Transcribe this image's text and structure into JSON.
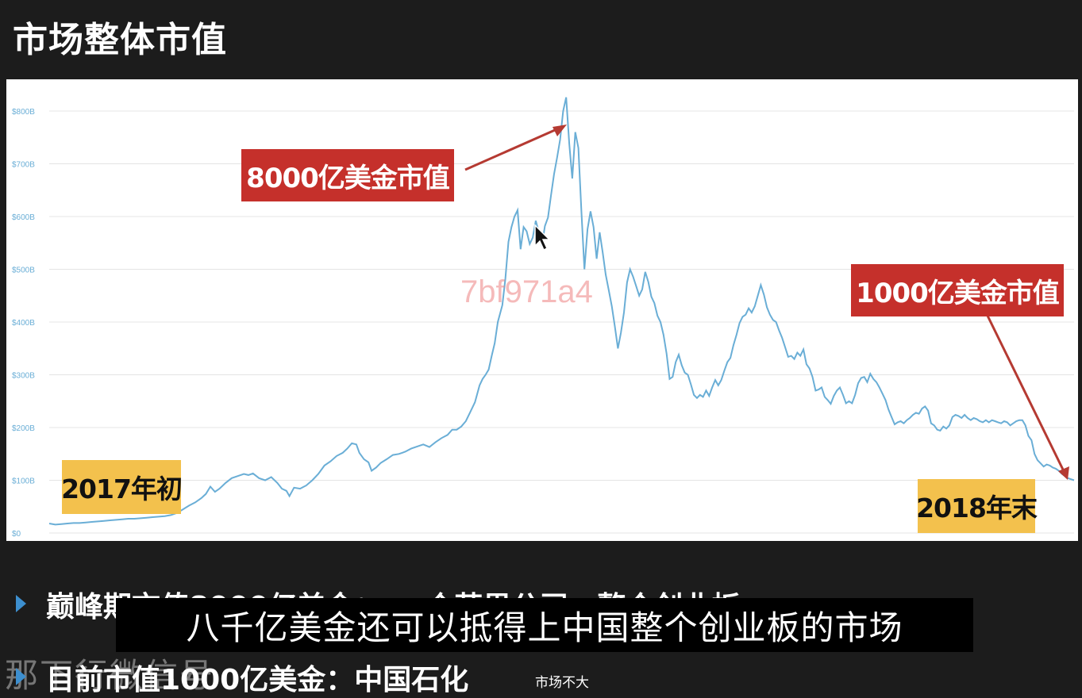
{
  "slide": {
    "title": "市场整体市值"
  },
  "callouts": {
    "peak": "8000亿美金市值",
    "current": "1000亿美金市值",
    "start_badge": "2017年初",
    "end_badge": "2018年末",
    "color": "#c5302b",
    "badge_color": "#f3c14d"
  },
  "watermark": "7bf971a4",
  "bullets": [
    {
      "text": "巅峰期市值8000亿美金：　一个苹果公司，整个创业板"
    },
    {
      "text": "目前市值1000亿美金：中国石化"
    }
  ],
  "note": "市场不大",
  "channel_watermark": "那下行微信号",
  "subtitle": "八千亿美金还可以抵得上中国整个创业板的市场",
  "chart_data": {
    "type": "line",
    "series": [
      {
        "values": [
          [
            0,
            18
          ],
          [
            8,
            16
          ],
          [
            16,
            17
          ],
          [
            24,
            18
          ],
          [
            32,
            19
          ],
          [
            40,
            19
          ],
          [
            48,
            20
          ],
          [
            56,
            21
          ],
          [
            64,
            22
          ],
          [
            72,
            23
          ],
          [
            80,
            24
          ],
          [
            88,
            25
          ],
          [
            96,
            26
          ],
          [
            104,
            27
          ],
          [
            112,
            27
          ],
          [
            120,
            28
          ],
          [
            128,
            29
          ],
          [
            136,
            30
          ],
          [
            144,
            31
          ],
          [
            152,
            32
          ],
          [
            160,
            34
          ],
          [
            168,
            38
          ],
          [
            176,
            45
          ],
          [
            184,
            52
          ],
          [
            192,
            58
          ],
          [
            200,
            66
          ],
          [
            206,
            74
          ],
          [
            212,
            88
          ],
          [
            218,
            78
          ],
          [
            224,
            84
          ],
          [
            232,
            95
          ],
          [
            240,
            104
          ],
          [
            248,
            108
          ],
          [
            256,
            112
          ],
          [
            262,
            110
          ],
          [
            268,
            113
          ],
          [
            276,
            104
          ],
          [
            284,
            100
          ],
          [
            292,
            106
          ],
          [
            300,
            95
          ],
          [
            306,
            84
          ],
          [
            312,
            80
          ],
          [
            316,
            70
          ],
          [
            322,
            86
          ],
          [
            330,
            84
          ],
          [
            338,
            90
          ],
          [
            346,
            100
          ],
          [
            354,
            112
          ],
          [
            362,
            128
          ],
          [
            370,
            136
          ],
          [
            378,
            146
          ],
          [
            386,
            152
          ],
          [
            392,
            160
          ],
          [
            398,
            170
          ],
          [
            404,
            168
          ],
          [
            408,
            152
          ],
          [
            414,
            140
          ],
          [
            420,
            134
          ],
          [
            424,
            118
          ],
          [
            430,
            124
          ],
          [
            436,
            133
          ],
          [
            444,
            140
          ],
          [
            452,
            148
          ],
          [
            460,
            150
          ],
          [
            468,
            154
          ],
          [
            476,
            160
          ],
          [
            484,
            164
          ],
          [
            492,
            168
          ],
          [
            500,
            163
          ],
          [
            508,
            172
          ],
          [
            516,
            180
          ],
          [
            524,
            186
          ],
          [
            530,
            196
          ],
          [
            536,
            196
          ],
          [
            542,
            202
          ],
          [
            548,
            212
          ],
          [
            554,
            230
          ],
          [
            560,
            248
          ],
          [
            566,
            280
          ],
          [
            570,
            292
          ],
          [
            574,
            300
          ],
          [
            578,
            310
          ],
          [
            582,
            336
          ],
          [
            586,
            360
          ],
          [
            590,
            400
          ],
          [
            596,
            432
          ],
          [
            600,
            482
          ],
          [
            604,
            552
          ],
          [
            608,
            580
          ],
          [
            612,
            600
          ],
          [
            616,
            612
          ],
          [
            620,
            538
          ],
          [
            624,
            580
          ],
          [
            628,
            572
          ],
          [
            632,
            548
          ],
          [
            636,
            560
          ],
          [
            640,
            592
          ],
          [
            644,
            570
          ],
          [
            648,
            544
          ],
          [
            652,
            582
          ],
          [
            656,
            598
          ],
          [
            660,
            640
          ],
          [
            664,
            680
          ],
          [
            668,
            712
          ],
          [
            672,
            746
          ],
          [
            676,
            800
          ],
          [
            680,
            826
          ],
          [
            684,
            738
          ],
          [
            688,
            672
          ],
          [
            692,
            760
          ],
          [
            696,
            730
          ],
          [
            700,
            610
          ],
          [
            704,
            500
          ],
          [
            708,
            576
          ],
          [
            712,
            610
          ],
          [
            716,
            580
          ],
          [
            720,
            520
          ],
          [
            724,
            570
          ],
          [
            728,
            532
          ],
          [
            732,
            490
          ],
          [
            736,
            460
          ],
          [
            740,
            430
          ],
          [
            744,
            392
          ],
          [
            748,
            350
          ],
          [
            752,
            380
          ],
          [
            756,
            418
          ],
          [
            760,
            475
          ],
          [
            764,
            500
          ],
          [
            768,
            486
          ],
          [
            772,
            468
          ],
          [
            776,
            450
          ],
          [
            780,
            462
          ],
          [
            784,
            495
          ],
          [
            788,
            476
          ],
          [
            792,
            448
          ],
          [
            796,
            436
          ],
          [
            800,
            412
          ],
          [
            804,
            400
          ],
          [
            808,
            376
          ],
          [
            812,
            340
          ],
          [
            816,
            292
          ],
          [
            820,
            296
          ],
          [
            824,
            324
          ],
          [
            828,
            338
          ],
          [
            832,
            318
          ],
          [
            836,
            304
          ],
          [
            840,
            300
          ],
          [
            844,
            282
          ],
          [
            848,
            262
          ],
          [
            852,
            256
          ],
          [
            856,
            262
          ],
          [
            860,
            258
          ],
          [
            864,
            270
          ],
          [
            868,
            260
          ],
          [
            872,
            276
          ],
          [
            876,
            290
          ],
          [
            880,
            280
          ],
          [
            884,
            290
          ],
          [
            888,
            308
          ],
          [
            892,
            324
          ],
          [
            896,
            332
          ],
          [
            900,
            356
          ],
          [
            904,
            376
          ],
          [
            908,
            398
          ],
          [
            912,
            410
          ],
          [
            916,
            414
          ],
          [
            920,
            426
          ],
          [
            924,
            418
          ],
          [
            928,
            430
          ],
          [
            932,
            450
          ],
          [
            936,
            470
          ],
          [
            940,
            452
          ],
          [
            944,
            428
          ],
          [
            948,
            414
          ],
          [
            952,
            404
          ],
          [
            956,
            400
          ],
          [
            960,
            384
          ],
          [
            964,
            370
          ],
          [
            968,
            352
          ],
          [
            972,
            334
          ],
          [
            976,
            336
          ],
          [
            980,
            330
          ],
          [
            984,
            342
          ],
          [
            988,
            336
          ],
          [
            992,
            348
          ],
          [
            996,
            320
          ],
          [
            1000,
            312
          ],
          [
            1004,
            296
          ],
          [
            1008,
            270
          ],
          [
            1012,
            272
          ],
          [
            1016,
            276
          ],
          [
            1020,
            258
          ],
          [
            1024,
            252
          ],
          [
            1028,
            245
          ],
          [
            1032,
            260
          ],
          [
            1036,
            270
          ],
          [
            1040,
            276
          ],
          [
            1044,
            262
          ],
          [
            1048,
            246
          ],
          [
            1052,
            250
          ],
          [
            1056,
            246
          ],
          [
            1060,
            262
          ],
          [
            1064,
            284
          ],
          [
            1068,
            294
          ],
          [
            1072,
            296
          ],
          [
            1076,
            286
          ],
          [
            1080,
            302
          ],
          [
            1084,
            292
          ],
          [
            1088,
            286
          ],
          [
            1092,
            276
          ],
          [
            1096,
            264
          ],
          [
            1100,
            252
          ],
          [
            1104,
            234
          ],
          [
            1108,
            220
          ],
          [
            1112,
            206
          ],
          [
            1116,
            210
          ],
          [
            1120,
            212
          ],
          [
            1124,
            208
          ],
          [
            1128,
            214
          ],
          [
            1132,
            218
          ],
          [
            1136,
            224
          ],
          [
            1140,
            228
          ],
          [
            1144,
            226
          ],
          [
            1148,
            236
          ],
          [
            1152,
            240
          ],
          [
            1156,
            232
          ],
          [
            1160,
            208
          ],
          [
            1164,
            204
          ],
          [
            1168,
            196
          ],
          [
            1172,
            194
          ],
          [
            1176,
            202
          ],
          [
            1180,
            198
          ],
          [
            1184,
            204
          ],
          [
            1188,
            220
          ],
          [
            1192,
            224
          ],
          [
            1196,
            222
          ],
          [
            1200,
            218
          ],
          [
            1204,
            224
          ],
          [
            1208,
            218
          ],
          [
            1212,
            214
          ],
          [
            1216,
            218
          ],
          [
            1220,
            216
          ],
          [
            1224,
            212
          ],
          [
            1228,
            210
          ],
          [
            1232,
            214
          ],
          [
            1236,
            210
          ],
          [
            1240,
            214
          ],
          [
            1244,
            212
          ],
          [
            1248,
            210
          ],
          [
            1252,
            208
          ],
          [
            1256,
            212
          ],
          [
            1260,
            210
          ],
          [
            1264,
            204
          ],
          [
            1268,
            208
          ],
          [
            1272,
            212
          ],
          [
            1276,
            214
          ],
          [
            1280,
            214
          ],
          [
            1284,
            204
          ],
          [
            1288,
            184
          ],
          [
            1292,
            176
          ],
          [
            1296,
            150
          ],
          [
            1300,
            138
          ],
          [
            1304,
            132
          ],
          [
            1308,
            126
          ],
          [
            1312,
            130
          ],
          [
            1316,
            128
          ],
          [
            1320,
            124
          ],
          [
            1324,
            122
          ],
          [
            1328,
            118
          ],
          [
            1332,
            112
          ],
          [
            1336,
            108
          ],
          [
            1340,
            104
          ],
          [
            1344,
            102
          ],
          [
            1348,
            100
          ]
        ]
      }
    ],
    "y_ticks": [
      "$0",
      "$100B",
      "$200B",
      "$300B",
      "$400B",
      "$500B",
      "$600B",
      "$700B",
      "$800B"
    ],
    "y_tick_values": [
      0,
      100,
      200,
      300,
      400,
      500,
      600,
      700,
      800
    ],
    "ylim": [
      0,
      800
    ],
    "grid": true,
    "line_color": "#6aaed6"
  }
}
